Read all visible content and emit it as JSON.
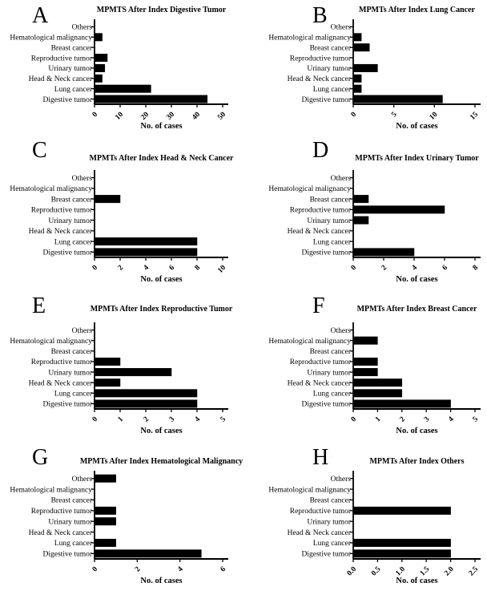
{
  "figure": {
    "background": "#ffffff",
    "bar_color": "#000000",
    "axis_color": "#000000",
    "text_color": "#000000"
  },
  "chart_data": [
    {
      "letter": "A",
      "type": "bar",
      "orientation": "horizontal",
      "title": "MPMTS After Index Digestive Tumor",
      "xlabel": "No. of cases",
      "categories": [
        "Others",
        "Hematological malignancy",
        "Breast cancer",
        "Reproductive tumor",
        "Urinary tumor",
        "Head & Neck cancer",
        "Lung cancer",
        "Digestive tumor"
      ],
      "values": [
        0,
        3,
        0,
        5,
        4,
        3,
        22,
        44
      ],
      "xticks": [
        0,
        10,
        20,
        30,
        40,
        50
      ],
      "xtick_labels": [
        "0",
        "10",
        "20",
        "30",
        "40",
        "50"
      ],
      "xlim": [
        0,
        50
      ]
    },
    {
      "letter": "B",
      "type": "bar",
      "orientation": "horizontal",
      "title": "MPMTs After Index Lung Cancer",
      "xlabel": "No. of cases",
      "categories": [
        "Others",
        "Hematological malignancy",
        "Breast cancer",
        "Reproductive tumor",
        "Urinary tumor",
        "Head & Neck cancer",
        "Lung cancer",
        "Digestive tumor"
      ],
      "values": [
        0,
        1,
        2,
        0,
        3,
        1,
        1,
        11
      ],
      "xticks": [
        0,
        5,
        10,
        15
      ],
      "xtick_labels": [
        "0",
        "5",
        "10",
        "15"
      ],
      "xlim": [
        0,
        15
      ]
    },
    {
      "letter": "C",
      "type": "bar",
      "orientation": "horizontal",
      "title": "MPMTs After Index Head & Neck Cancer",
      "xlabel": "No. of cases",
      "categories": [
        "Others",
        "Hematological malignancy",
        "Breast cancer",
        "Reproductive tumor",
        "Urinary tumor",
        "Head & Neck cancer",
        "Lung cancer",
        "Digestive tumor"
      ],
      "values": [
        0,
        0,
        2,
        0,
        0,
        0,
        8,
        8
      ],
      "xticks": [
        0,
        2,
        4,
        6,
        8,
        10
      ],
      "xtick_labels": [
        "0",
        "2",
        "4",
        "6",
        "8",
        "10"
      ],
      "xlim": [
        0,
        10
      ]
    },
    {
      "letter": "D",
      "type": "bar",
      "orientation": "horizontal",
      "title": "MPMTs After Index Urinary Tumor",
      "xlabel": "No. of cases",
      "categories": [
        "Others",
        "Hematological malignancy",
        "Breast cancer",
        "Reproductive tumor",
        "Urinary tumor",
        "Head & Neck cancer",
        "Lung cancer",
        "Digestive tumor"
      ],
      "values": [
        0,
        0,
        1,
        6,
        1,
        0,
        0,
        4
      ],
      "xticks": [
        0,
        2,
        4,
        6,
        8
      ],
      "xtick_labels": [
        "0",
        "2",
        "4",
        "6",
        "8"
      ],
      "xlim": [
        0,
        8
      ]
    },
    {
      "letter": "E",
      "type": "bar",
      "orientation": "horizontal",
      "title": "MPMTs After Index Reproductive Tumor",
      "xlabel": "No. of cases",
      "categories": [
        "Others",
        "Hematological malignancy",
        "Breast cancer",
        "Reproductive tumor",
        "Urinary tumor",
        "Head & Neck cancer",
        "Lung cancer",
        "Digestive tumor"
      ],
      "values": [
        0,
        0,
        0,
        1,
        3,
        1,
        4,
        4
      ],
      "xticks": [
        0,
        1,
        2,
        3,
        4,
        5
      ],
      "xtick_labels": [
        "0",
        "1",
        "2",
        "3",
        "4",
        "5"
      ],
      "xlim": [
        0,
        5
      ]
    },
    {
      "letter": "F",
      "type": "bar",
      "orientation": "horizontal",
      "title": "MPMTs After Index Breast Cancer",
      "xlabel": "No. of cases",
      "categories": [
        "Others",
        "Hematological malignancy",
        "Breast cancer",
        "Reproductive tumor",
        "Urinary tumor",
        "Head & Neck cancer",
        "Lung cancer",
        "Digestive tumor"
      ],
      "values": [
        0,
        1,
        0,
        1,
        1,
        2,
        2,
        4
      ],
      "xticks": [
        0,
        1,
        2,
        3,
        4,
        5
      ],
      "xtick_labels": [
        "0",
        "1",
        "2",
        "3",
        "4",
        "5"
      ],
      "xlim": [
        0,
        5
      ]
    },
    {
      "letter": "G",
      "type": "bar",
      "orientation": "horizontal",
      "title": "MPMTs After Index Hematological Malignancy",
      "xlabel": "No. of cases",
      "categories": [
        "Others",
        "Hematological malignancy",
        "Breast cancer",
        "Reproductive tumor",
        "Urinary tumor",
        "Head & Neck cancer",
        "Lung cancer",
        "Digestive tumor"
      ],
      "values": [
        1,
        0,
        0,
        1,
        1,
        0,
        1,
        5
      ],
      "xticks": [
        0,
        2,
        4,
        6
      ],
      "xtick_labels": [
        "0",
        "2",
        "4",
        "6"
      ],
      "xlim": [
        0,
        6
      ]
    },
    {
      "letter": "H",
      "type": "bar",
      "orientation": "horizontal",
      "title": "MPMTs After Index Others",
      "xlabel": "No. of cases",
      "categories": [
        "Others",
        "Hematological malignancy",
        "Breast cancer",
        "Reproductive tumor",
        "Urinary tumor",
        "Head & Neck cancer",
        "Lung cancer",
        "Digestive tumor"
      ],
      "values": [
        0,
        0,
        0,
        2,
        0,
        0,
        2,
        2
      ],
      "xticks": [
        0,
        0.5,
        1,
        1.5,
        2,
        2.5
      ],
      "xtick_labels": [
        "0.0",
        "0.5",
        "1.0",
        "1.5",
        "2.0",
        "2.5"
      ],
      "xlim": [
        0,
        2.5
      ]
    }
  ]
}
